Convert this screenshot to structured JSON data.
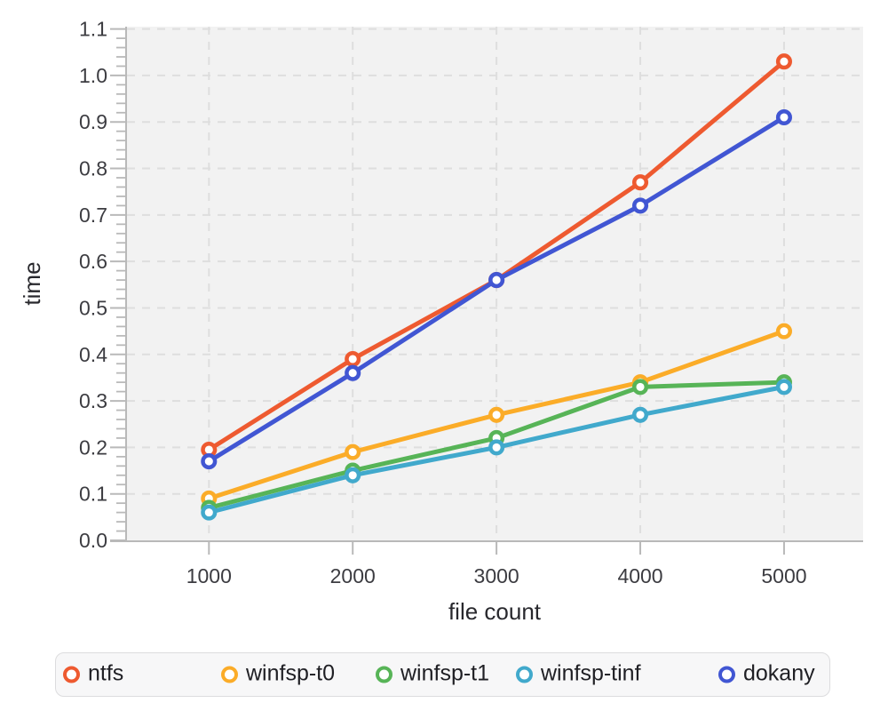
{
  "chart_data": {
    "type": "line",
    "title": "",
    "xlabel": "file count",
    "ylabel": "time",
    "x": [
      1000,
      2000,
      3000,
      4000,
      5000
    ],
    "series": [
      {
        "name": "ntfs",
        "color": "#EE5A30",
        "values": [
          0.195,
          0.39,
          0.56,
          0.77,
          1.03
        ]
      },
      {
        "name": "winfsp-t0",
        "color": "#FBAC28",
        "values": [
          0.09,
          0.19,
          0.27,
          0.34,
          0.45
        ]
      },
      {
        "name": "winfsp-t1",
        "color": "#57B457",
        "values": [
          0.07,
          0.15,
          0.22,
          0.33,
          0.34
        ]
      },
      {
        "name": "winfsp-tinf",
        "color": "#41A9CC",
        "values": [
          0.06,
          0.14,
          0.2,
          0.27,
          0.33
        ]
      },
      {
        "name": "dokany",
        "color": "#4156D3",
        "values": [
          0.17,
          0.36,
          0.56,
          0.72,
          0.91
        ]
      }
    ],
    "xticks": [
      1000,
      2000,
      3000,
      4000,
      5000
    ],
    "yticks": [
      0.0,
      0.1,
      0.2,
      0.3,
      0.4,
      0.5,
      0.6,
      0.7,
      0.8,
      0.9,
      1.0,
      1.1
    ],
    "y_minor_step": 0.02,
    "xlim": [
      430,
      5550
    ],
    "ylim": [
      0,
      1.105
    ],
    "grid": true,
    "legend_position": "bottom",
    "colors": {
      "plot_bg": "#F2F2F2",
      "grid": "#DEDEDE",
      "axis": "#B9B9B9",
      "tick_text": "#3C3C41",
      "label_text": "#28282D",
      "legend_bg": "#F7F7F8",
      "legend_border": "#DCDCDE",
      "legend_text": "#1F1F24",
      "marker_fill": "#FFFFFF"
    }
  }
}
